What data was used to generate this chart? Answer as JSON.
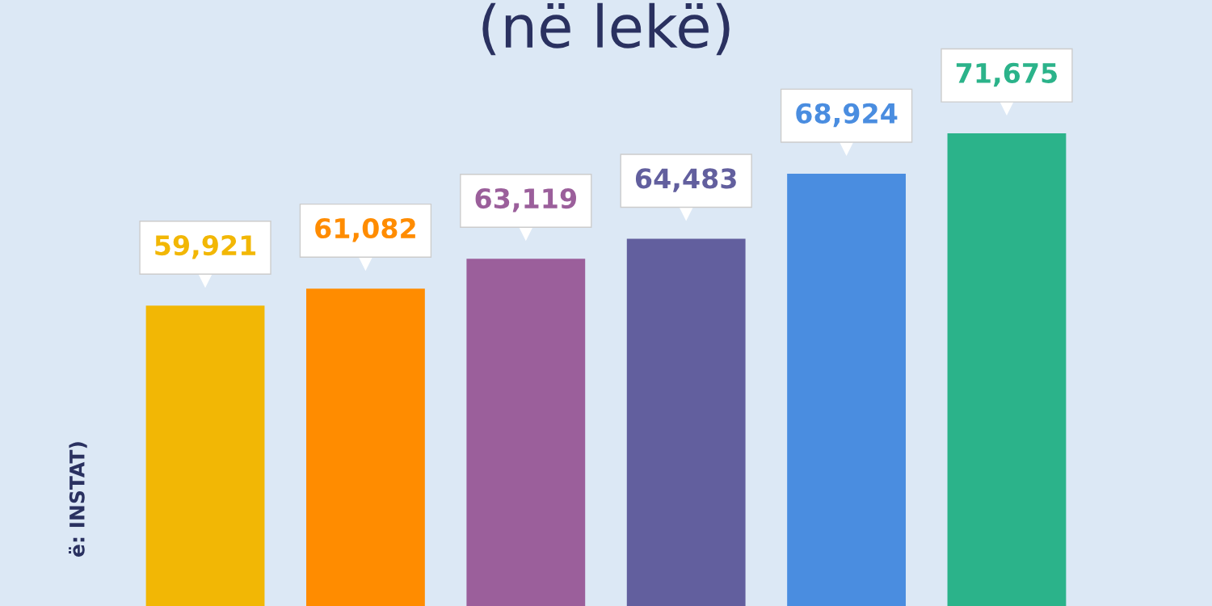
{
  "chart_data": {
    "type": "bar",
    "title": "(në lekë)",
    "annotations": [
      "ë: INSTAT)"
    ],
    "categories": [
      null,
      null,
      null,
      null,
      null,
      null
    ],
    "values": [
      59921,
      61082,
      63119,
      64483,
      68924,
      71675
    ],
    "colors": [
      "#f2b705",
      "#ff8c00",
      "#9b5f9b",
      "#625f9e",
      "#4a8de0",
      "#2bb38a"
    ],
    "value_labels": [
      "59,921",
      "61,082",
      "63,119",
      "64,483",
      "68,924",
      "71,675"
    ],
    "tick_labels": false,
    "grid": false,
    "legend": false
  }
}
